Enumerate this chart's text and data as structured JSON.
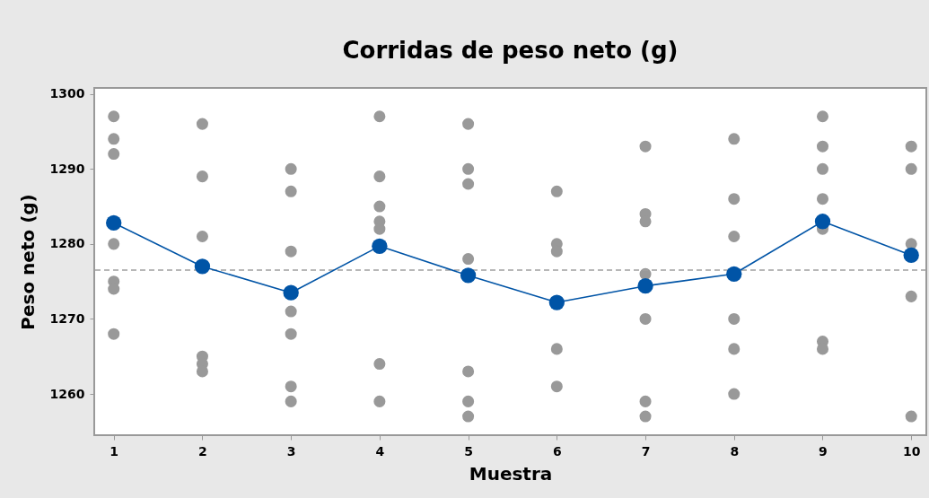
{
  "chart_data": {
    "type": "scatter",
    "title": "Corridas de peso neto (g)",
    "xlabel": "Muestra",
    "ylabel": "Peso neto (g)",
    "xlim": [
      0.78,
      10.17
    ],
    "xticks": [
      1,
      2,
      3,
      4,
      5,
      6,
      7,
      8,
      9,
      10
    ],
    "ylim": [
      1254.5,
      1300.8
    ],
    "yticks": [
      1260,
      1270,
      1280,
      1290,
      1300
    ],
    "grid": false,
    "ref_lines": [
      {
        "axis": "y",
        "value": 1276.5,
        "color": "#a0a0a0",
        "line_style": "dashed"
      }
    ],
    "series": [
      {
        "type": "scatter",
        "color": "#999999",
        "marker": "circle",
        "x": [
          1,
          1,
          1,
          1,
          1,
          1,
          1,
          2,
          2,
          2,
          2,
          2,
          2,
          3,
          3,
          3,
          3,
          3,
          3,
          3,
          4,
          4,
          4,
          4,
          4,
          4,
          4,
          5,
          5,
          5,
          5,
          5,
          5,
          5,
          6,
          6,
          6,
          6,
          6,
          7,
          7,
          7,
          7,
          7,
          7,
          7,
          8,
          8,
          8,
          8,
          8,
          8,
          9,
          9,
          9,
          9,
          9,
          9,
          9,
          10,
          10,
          10,
          10,
          10
        ],
        "values": [
          1297,
          1294,
          1292,
          1280,
          1275,
          1274,
          1268,
          1296,
          1289,
          1281,
          1265,
          1264,
          1263,
          1290,
          1287,
          1279,
          1271,
          1268,
          1261,
          1259,
          1297,
          1289,
          1285,
          1283,
          1282,
          1264,
          1259,
          1296,
          1290,
          1288,
          1278,
          1263,
          1259,
          1257,
          1287,
          1280,
          1279,
          1266,
          1261,
          1293,
          1284,
          1283,
          1276,
          1270,
          1259,
          1257,
          1294,
          1286,
          1281,
          1270,
          1266,
          1260,
          1297,
          1293,
          1290,
          1286,
          1282,
          1267,
          1266,
          1293,
          1290,
          1280,
          1273,
          1257
        ]
      },
      {
        "type": "line",
        "color": "#0054a6",
        "marker": "circle",
        "line_style": "solid",
        "x": [
          1,
          2,
          3,
          4,
          5,
          6,
          7,
          8,
          9,
          10
        ],
        "values": [
          1282.8,
          1277.0,
          1273.5,
          1279.7,
          1275.8,
          1272.2,
          1274.4,
          1276.0,
          1283.0,
          1278.5
        ]
      }
    ]
  }
}
